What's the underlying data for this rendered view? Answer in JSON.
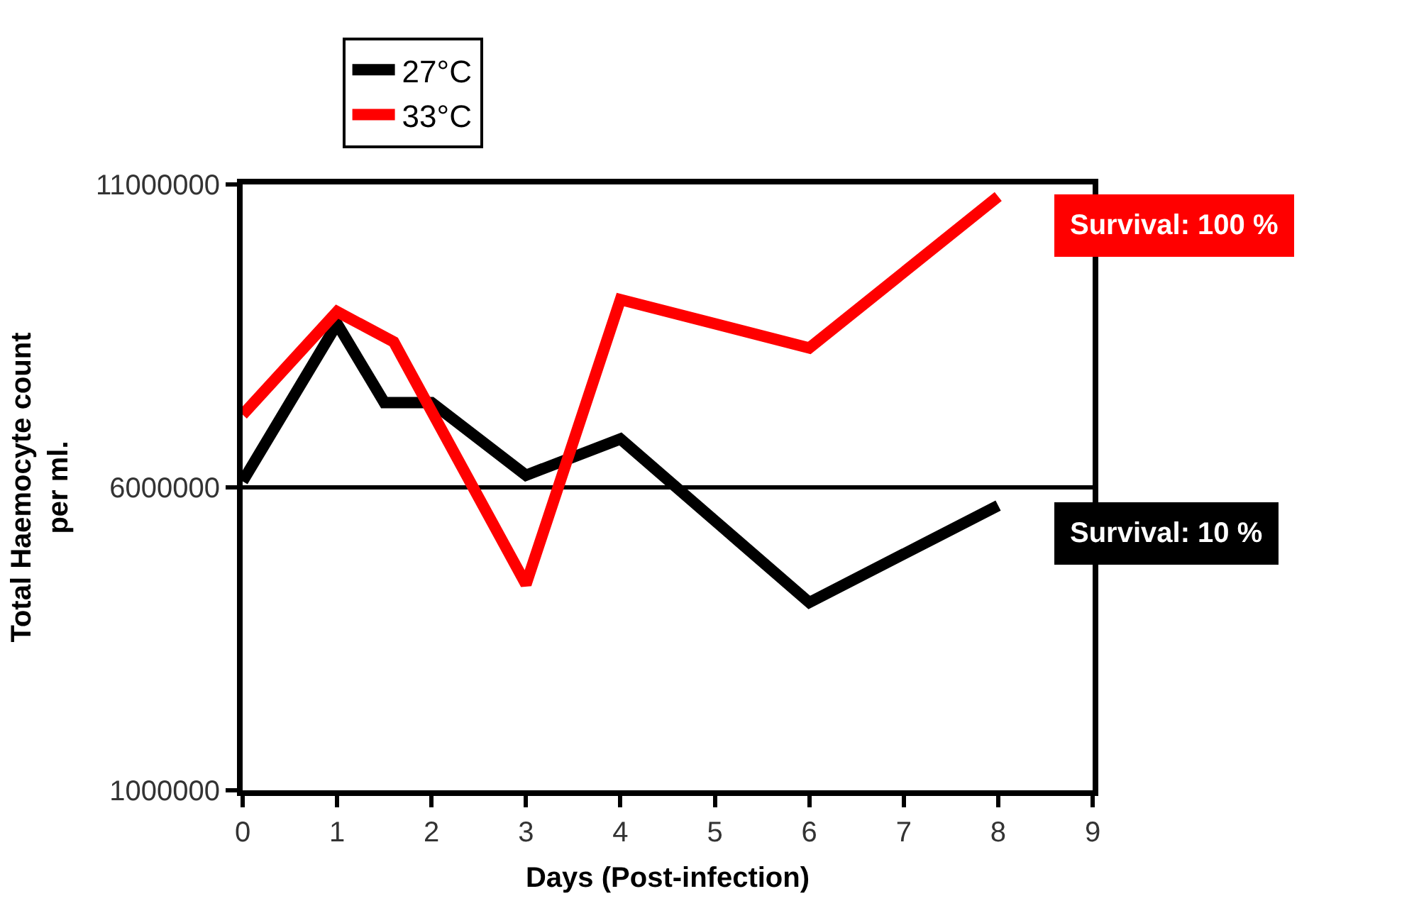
{
  "chart_data": {
    "type": "line",
    "xlabel": "Days (Post-infection)",
    "ylabel": "Total Haemocyte count\nper ml.",
    "series": [
      {
        "name": "27°C",
        "color": "#000000",
        "x": [
          0,
          1,
          1.5,
          2,
          3,
          4,
          6,
          8
        ],
        "values": [
          6100000,
          8700000,
          7400000,
          7400000,
          6200000,
          6800000,
          4100000,
          5700000
        ]
      },
      {
        "name": "33°C",
        "color": "#ff0000",
        "x": [
          0,
          1,
          1.6,
          3,
          4,
          6,
          8
        ],
        "values": [
          7200000,
          8900000,
          8400000,
          4400000,
          9100000,
          8300000,
          10800000
        ]
      }
    ],
    "xlim": [
      0,
      9
    ],
    "xticks": [
      0,
      1,
      2,
      3,
      4,
      5,
      6,
      7,
      8,
      9
    ],
    "ylim": [
      1000000,
      11000000
    ],
    "yticks": [
      1000000,
      6000000,
      11000000
    ],
    "grid": "y",
    "legend": "top",
    "marker": "none",
    "line_style": "solid",
    "annotations": [
      {
        "text": "Survival: 100 %",
        "x": 8,
        "y": 10800000
      },
      {
        "text": "Survival: 10 %",
        "x": 8,
        "y": 5700000
      }
    ]
  }
}
